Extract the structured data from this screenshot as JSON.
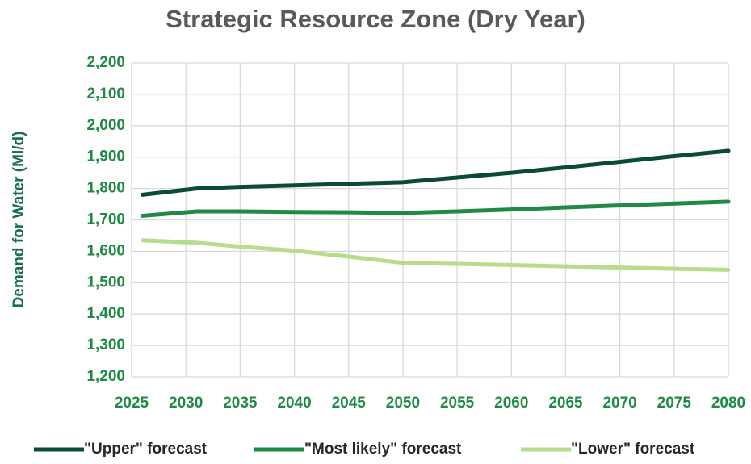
{
  "chart_data": {
    "type": "line",
    "title": "Strategic Resource Zone (Dry Year)",
    "y_label": "Demand for Water (Ml/d)",
    "x": [
      2026,
      2031,
      2035,
      2040,
      2045,
      2050,
      2055,
      2060,
      2065,
      2070,
      2075,
      2080
    ],
    "series": [
      {
        "name": "\"Upper\" forecast",
        "color": "#0b4a3a",
        "values": [
          1780,
          1800,
          1805,
          1810,
          1815,
          1820,
          1835,
          1850,
          1867,
          1885,
          1903,
          1920
        ]
      },
      {
        "name": "\"Most likely\" forecast",
        "color": "#1e8a45",
        "values": [
          1713,
          1727,
          1727,
          1725,
          1724,
          1722,
          1727,
          1733,
          1740,
          1746,
          1752,
          1758
        ]
      },
      {
        "name": "\"Lower\" forecast",
        "color": "#b7dc8c",
        "values": [
          1635,
          1627,
          1615,
          1602,
          1583,
          1563,
          1560,
          1556,
          1552,
          1548,
          1544,
          1541
        ]
      }
    ],
    "xlim": [
      2025,
      2080
    ],
    "xticks": [
      2025,
      2030,
      2035,
      2040,
      2045,
      2050,
      2055,
      2060,
      2065,
      2070,
      2075,
      2080
    ],
    "ylim": [
      1200,
      2200
    ],
    "yticks": [
      {
        "value": 1200,
        "label": "1,200"
      },
      {
        "value": 1300,
        "label": "1,300"
      },
      {
        "value": 1400,
        "label": "1,400"
      },
      {
        "value": 1500,
        "label": "1,500"
      },
      {
        "value": 1600,
        "label": "1,600"
      },
      {
        "value": 1700,
        "label": "1,700"
      },
      {
        "value": 1800,
        "label": "1,800"
      },
      {
        "value": 1900,
        "label": "1,900"
      },
      {
        "value": 2000,
        "label": "2,000"
      },
      {
        "value": 2100,
        "label": "2,100"
      },
      {
        "value": 2200,
        "label": "2,200"
      }
    ],
    "grid": true,
    "legend": "bottom"
  }
}
